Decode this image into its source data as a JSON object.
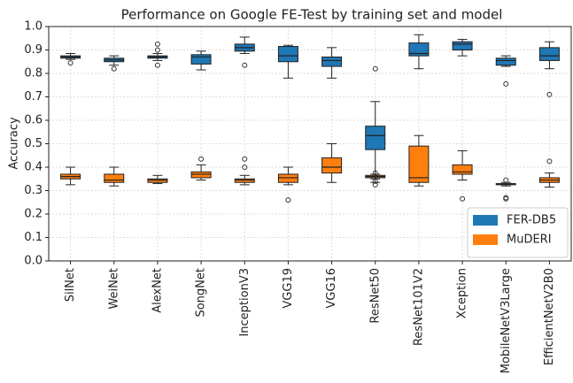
{
  "chart_data": {
    "type": "box",
    "title": "Performance on Google FE-Test by training set and model",
    "ylabel": "Accuracy",
    "categories": [
      "SilNet",
      "WeiNet",
      "AlexNet",
      "SongNet",
      "InceptionV3",
      "VGG19",
      "VGG16",
      "ResNet50",
      "ResNet101V2",
      "Xception",
      "MobileNetV3Large",
      "EfficientNetV2B0"
    ],
    "ylim": [
      0,
      1
    ],
    "yticks": [
      {
        "value": 0,
        "label": "0.0"
      },
      {
        "value": 0.1,
        "label": "0.1"
      },
      {
        "value": 0.2,
        "label": "0.2"
      },
      {
        "value": 0.3,
        "label": "0.3"
      },
      {
        "value": 0.4,
        "label": "0.4"
      },
      {
        "value": 0.5,
        "label": "0.5"
      },
      {
        "value": 0.6,
        "label": "0.6"
      },
      {
        "value": 0.7,
        "label": "0.7"
      },
      {
        "value": 0.8,
        "label": "0.8"
      },
      {
        "value": 0.9,
        "label": "0.9"
      },
      {
        "value": 1,
        "label": "1.0"
      }
    ],
    "grid": true,
    "legend": "lower right",
    "series": [
      {
        "name": "MuDERI",
        "color": "#ff7f0e",
        "min": [
          0.325,
          0.32,
          0.33,
          0.345,
          0.325,
          0.325,
          0.335,
          0.35,
          0.32,
          0.345,
          0.32,
          0.315
        ],
        "q1": [
          0.35,
          0.335,
          0.335,
          0.355,
          0.335,
          0.335,
          0.375,
          0.355,
          0.335,
          0.37,
          0.325,
          0.335
        ],
        "median": [
          0.36,
          0.345,
          0.345,
          0.37,
          0.345,
          0.355,
          0.4,
          0.36,
          0.355,
          0.38,
          0.328,
          0.345
        ],
        "q3": [
          0.37,
          0.37,
          0.35,
          0.38,
          0.35,
          0.37,
          0.44,
          0.365,
          0.49,
          0.41,
          0.33,
          0.355
        ],
        "max": [
          0.4,
          0.4,
          0.365,
          0.41,
          0.365,
          0.4,
          0.5,
          0.37,
          0.535,
          0.47,
          0.335,
          0.375
        ],
        "outliers": [
          [],
          [],
          [],
          [
            0.435
          ],
          [
            0.435,
            0.4
          ],
          [
            0.26
          ],
          [],
          [
            0.375,
            0.34,
            0.325
          ],
          [],
          [
            0.265
          ],
          [
            0.345,
            0.27,
            0.265
          ],
          [
            0.425
          ]
        ]
      },
      {
        "name": "FER-DB5",
        "color": "#1f77b4",
        "min": [
          0.86,
          0.835,
          0.855,
          0.815,
          0.885,
          0.78,
          0.78,
          0.335,
          0.82,
          0.875,
          0.83,
          0.82
        ],
        "q1": [
          0.865,
          0.85,
          0.865,
          0.84,
          0.895,
          0.85,
          0.83,
          0.475,
          0.875,
          0.9,
          0.835,
          0.855
        ],
        "median": [
          0.87,
          0.857,
          0.87,
          0.87,
          0.91,
          0.875,
          0.855,
          0.535,
          0.885,
          0.925,
          0.855,
          0.875
        ],
        "q3": [
          0.875,
          0.865,
          0.875,
          0.88,
          0.925,
          0.915,
          0.87,
          0.575,
          0.93,
          0.935,
          0.865,
          0.91
        ],
        "max": [
          0.885,
          0.875,
          0.885,
          0.895,
          0.955,
          0.92,
          0.91,
          0.68,
          0.965,
          0.945,
          0.875,
          0.935
        ],
        "outliers": [
          [
            0.845
          ],
          [
            0.82
          ],
          [
            0.925,
            0.9,
            0.835
          ],
          [],
          [
            0.835
          ],
          [],
          [],
          [
            0.82
          ],
          [],
          [],
          [
            0.755
          ],
          [
            0.71
          ]
        ]
      }
    ]
  }
}
